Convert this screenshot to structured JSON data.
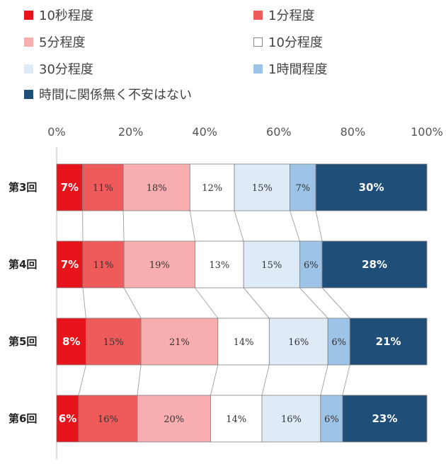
{
  "chart_data": {
    "type": "bar",
    "orientation": "horizontal",
    "stacked": "percent",
    "categories": [
      "第3回",
      "第4回",
      "第5回",
      "第6回"
    ],
    "series": [
      {
        "name": "10秒程度",
        "color": "#e8141b",
        "values": [
          7,
          7,
          8,
          6
        ]
      },
      {
        "name": "1分程度",
        "color": "#ef5a5b",
        "values": [
          11,
          11,
          15,
          16
        ]
      },
      {
        "name": "5分程度",
        "color": "#f8aeae",
        "values": [
          18,
          19,
          21,
          20
        ]
      },
      {
        "name": "10分程度",
        "color": "#ffffff",
        "values": [
          12,
          13,
          14,
          14
        ]
      },
      {
        "name": "30分程度",
        "color": "#deeaf6",
        "values": [
          15,
          15,
          16,
          16
        ]
      },
      {
        "name": "1時間程度",
        "color": "#9dc3e6",
        "values": [
          7,
          6,
          6,
          6
        ]
      },
      {
        "name": "時間に関係無く不安はない",
        "color": "#1f4e79",
        "values": [
          30,
          28,
          21,
          23
        ]
      }
    ],
    "xlim": [
      0,
      100
    ],
    "x_ticks": [
      "0%",
      "20%",
      "40%",
      "60%",
      "80%",
      "100%"
    ],
    "grid": false,
    "legend_position": "top"
  }
}
